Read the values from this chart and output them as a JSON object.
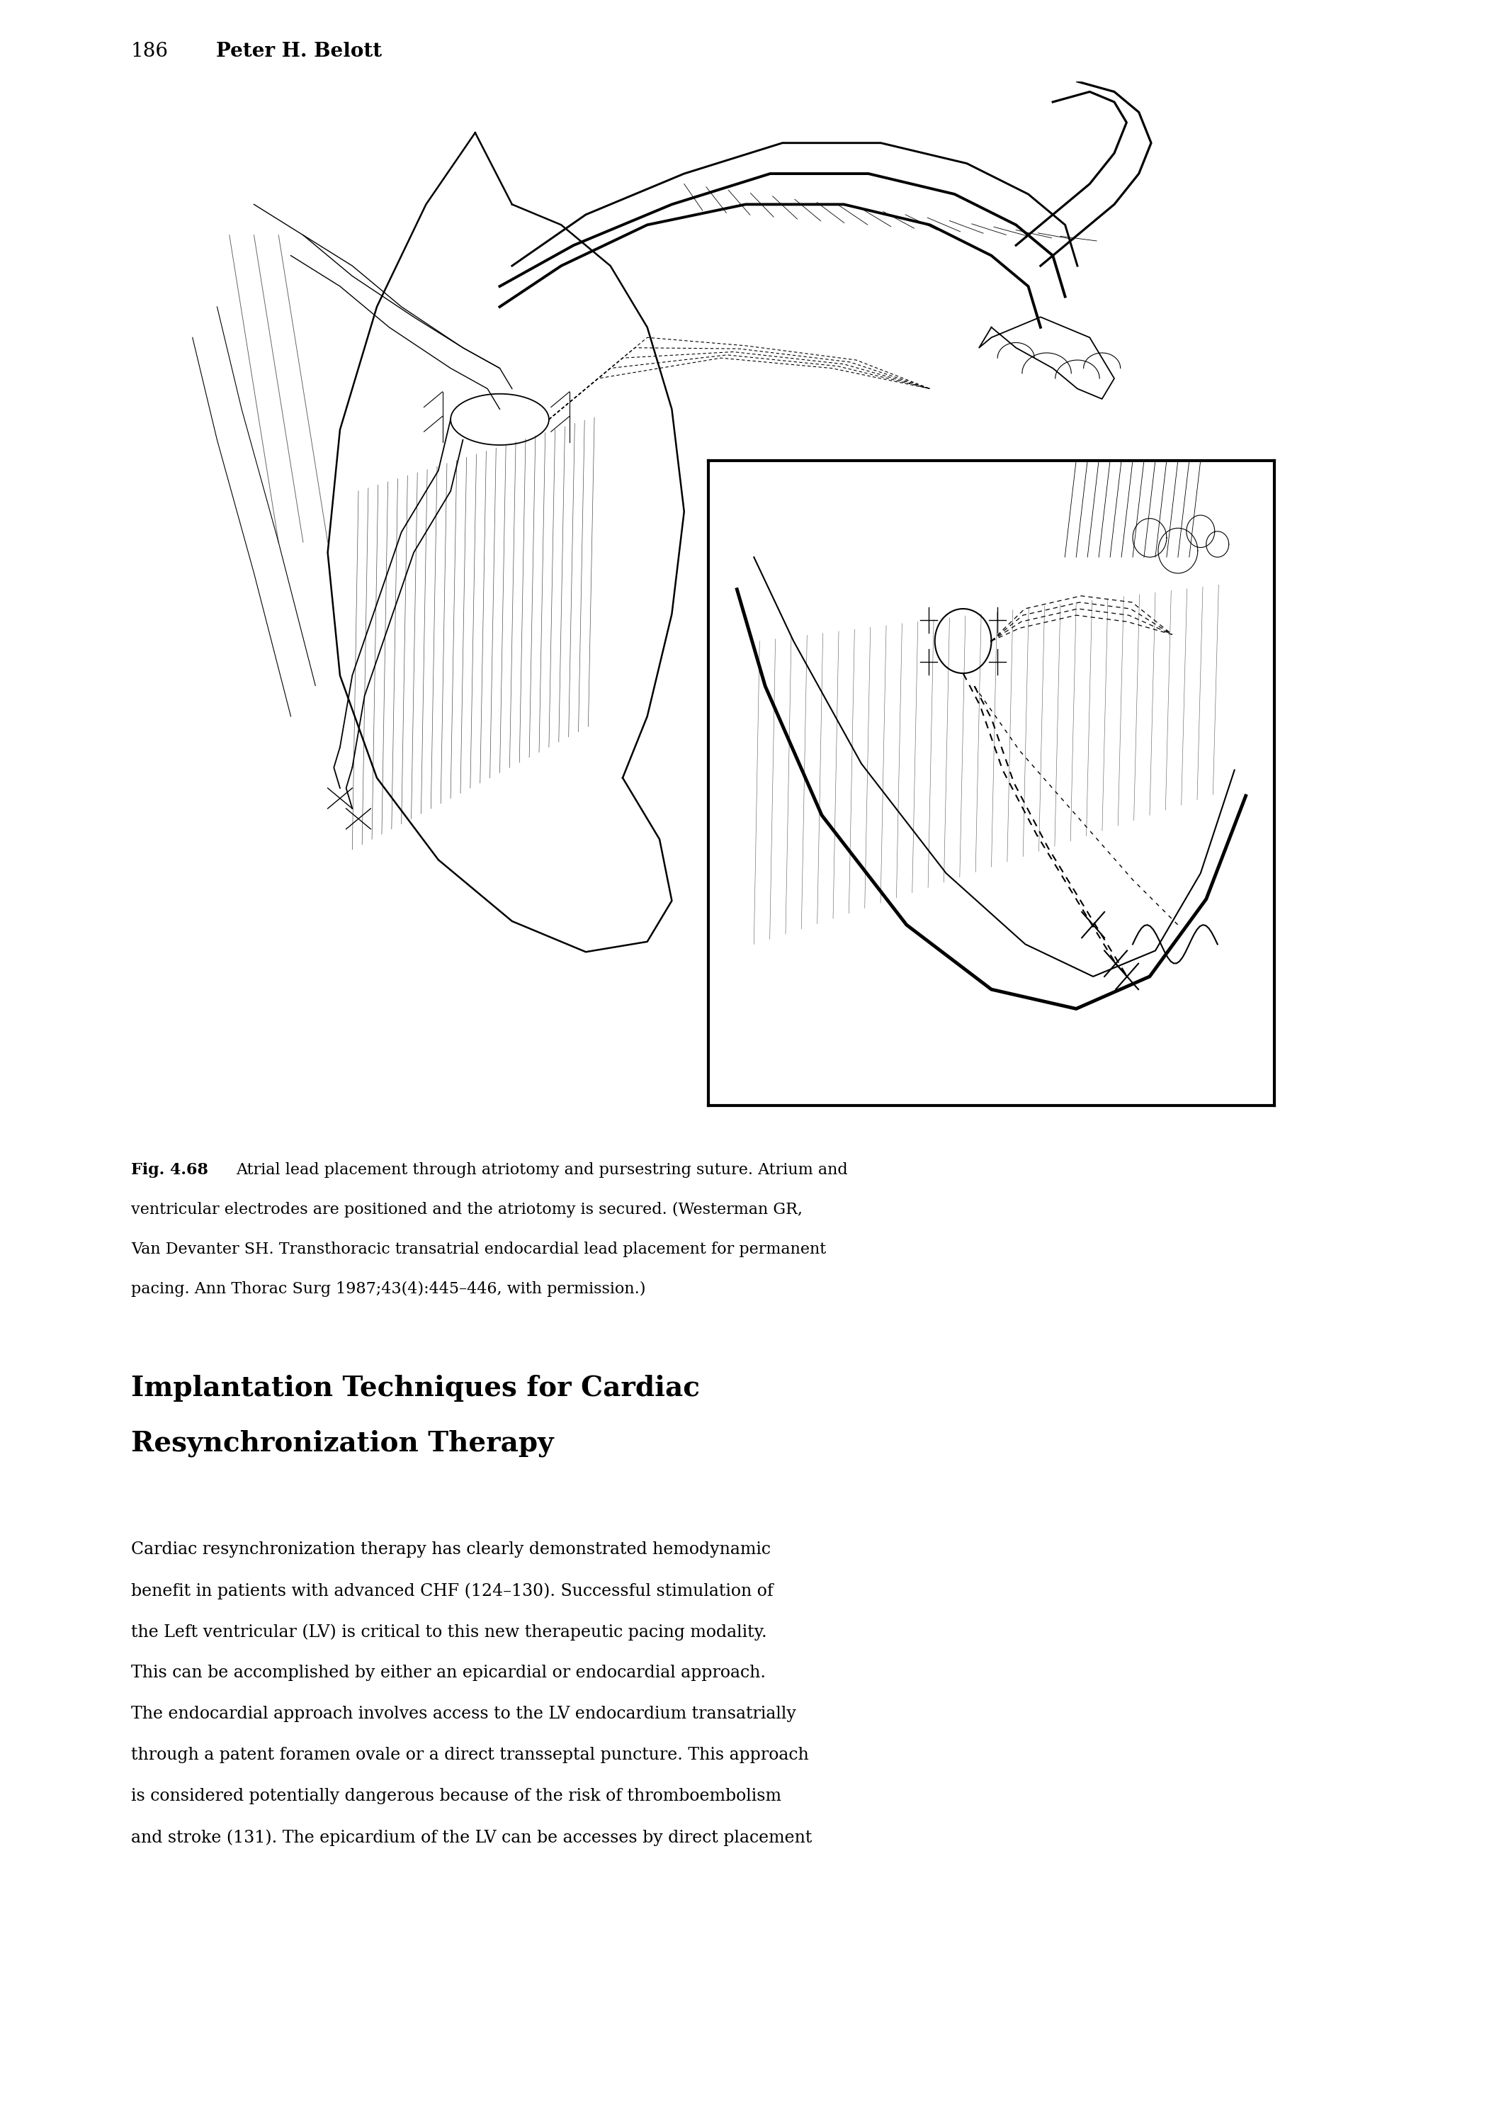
{
  "page_number": "186",
  "author": "Peter H. Belott",
  "fig_bold": "Fig. 4.68",
  "fig_caption_rest": " Atrial lead placement through atriotomy and pursestring suture. Atrium and",
  "fig_caption_line2": "ventricular electrodes are positioned and the atriotomy is secured. (Westerman GR,",
  "fig_caption_line3": "Van Devanter SH. Transthoracic transatrial endocardial lead placement for permanent",
  "fig_caption_line4": "pacing. Ann Thorac Surg 1987;43(4):445–446, with permission.)",
  "heading_line1": "Implantation Techniques for Cardiac",
  "heading_line2": "Resynchronization Therapy",
  "body_lines": [
    "Cardiac resynchronization therapy has clearly demonstrated hemodynamic",
    "benefit in patients with advanced CHF (124–130). Successful stimulation of",
    "the Left ventricular (LV) is critical to this new therapeutic pacing modality.",
    "This can be accomplished by either an epicardial or endocardial approach.",
    "The endocardial approach involves access to the LV endocardium transatrially",
    "through a patent foramen ovale or a direct transseptal puncture. This approach",
    "is considered potentially dangerous because of the risk of thromboembolism",
    "and stroke (131). The epicardium of the LV can be accesses by direct placement"
  ],
  "bg": "#ffffff",
  "fg": "#000000"
}
